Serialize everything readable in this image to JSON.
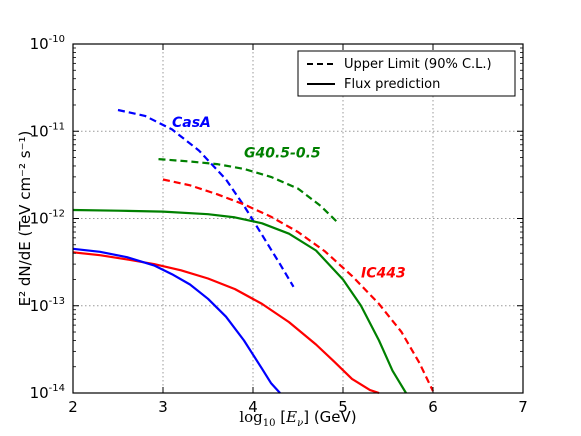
{
  "chart_data": {
    "type": "line",
    "xlabel_prefix": "log",
    "xlabel_sub": "10",
    "xlabel_var": "E",
    "xlabel_var_sub": "ν",
    "xlabel_unit": "(GeV)",
    "ylabel": "E² dN/dE (TeV cm⁻² s⁻¹)",
    "xlim": [
      2,
      7
    ],
    "ylim": [
      1e-14,
      1e-10
    ],
    "yscale": "log",
    "grid": true,
    "x_ticks": [
      "2",
      "3",
      "4",
      "5",
      "6",
      "7"
    ],
    "y_ticks": [
      {
        "base": "10",
        "exp": "-14"
      },
      {
        "base": "10",
        "exp": "-13"
      },
      {
        "base": "10",
        "exp": "-12"
      },
      {
        "base": "10",
        "exp": "-11"
      },
      {
        "base": "10",
        "exp": "-10"
      }
    ],
    "legend": {
      "position": "top-right",
      "entries": [
        {
          "label": "Upper Limit (90% C.L.)",
          "style": "dashed"
        },
        {
          "label": "Flux prediction",
          "style": "solid"
        }
      ]
    },
    "series": [
      {
        "source": "CasA",
        "kind": "upper_limit",
        "style": "dashed",
        "color": "#0000ff",
        "x": [
          2.5,
          2.8,
          3.1,
          3.4,
          3.7,
          3.9,
          4.1,
          4.3,
          4.45
        ],
        "y": [
          1.75e-11,
          1.5e-11,
          1.05e-11,
          6e-12,
          2.8e-12,
          1.4e-12,
          6.5e-13,
          3e-13,
          1.65e-13
        ]
      },
      {
        "source": "G40.5-0.5",
        "kind": "upper_limit",
        "style": "dashed",
        "color": "#008000",
        "x": [
          2.95,
          3.3,
          3.6,
          3.9,
          4.2,
          4.5,
          4.75,
          4.95
        ],
        "y": [
          4.8e-12,
          4.5e-12,
          4.2e-12,
          3.7e-12,
          3e-12,
          2.2e-12,
          1.4e-12,
          8.8e-13
        ]
      },
      {
        "source": "IC443",
        "kind": "upper_limit",
        "style": "dashed",
        "color": "#ff0000",
        "x": [
          3.0,
          3.3,
          3.6,
          3.9,
          4.2,
          4.5,
          4.8,
          5.1,
          5.4,
          5.65,
          5.85,
          6.0
        ],
        "y": [
          2.8e-12,
          2.4e-12,
          1.9e-12,
          1.45e-12,
          1.05e-12,
          7e-13,
          4.2e-13,
          2.2e-13,
          1.05e-13,
          5e-14,
          2.2e-14,
          1.05e-14
        ]
      },
      {
        "source": "G40.5-0.5",
        "kind": "prediction",
        "style": "solid",
        "color": "#008000",
        "x": [
          2.0,
          2.5,
          3.0,
          3.5,
          3.8,
          4.1,
          4.4,
          4.7,
          5.0,
          5.2,
          5.4,
          5.55,
          5.7
        ],
        "y": [
          1.25e-12,
          1.23e-12,
          1.2e-12,
          1.12e-12,
          1.03e-12,
          8.8e-13,
          6.7e-13,
          4.3e-13,
          2e-13,
          1e-13,
          4e-14,
          1.8e-14,
          1e-14
        ]
      },
      {
        "source": "IC443",
        "kind": "prediction",
        "style": "solid",
        "color": "#ff0000",
        "x": [
          2.0,
          2.3,
          2.6,
          2.9,
          3.2,
          3.5,
          3.8,
          4.1,
          4.4,
          4.7,
          4.9,
          5.1,
          5.3,
          5.4
        ],
        "y": [
          4.1e-13,
          3.8e-13,
          3.4e-13,
          3e-13,
          2.55e-13,
          2.05e-13,
          1.55e-13,
          1.05e-13,
          6.5e-14,
          3.6e-14,
          2.3e-14,
          1.45e-14,
          1.08e-14,
          1e-14
        ]
      },
      {
        "source": "CasA",
        "kind": "prediction",
        "style": "solid",
        "color": "#0000ff",
        "x": [
          2.0,
          2.3,
          2.6,
          2.9,
          3.1,
          3.3,
          3.5,
          3.7,
          3.9,
          4.1,
          4.2,
          4.3
        ],
        "y": [
          4.5e-13,
          4.15e-13,
          3.6e-13,
          2.9e-13,
          2.3e-13,
          1.75e-13,
          1.2e-13,
          7.5e-14,
          4e-14,
          1.9e-14,
          1.3e-14,
          1e-14
        ]
      }
    ],
    "annotations": [
      {
        "text": "CasA",
        "x": 3.1,
        "y": 1.12e-11,
        "color": "#0000ff"
      },
      {
        "text": "G40.5-0.5",
        "x": 3.9,
        "y": 5e-12,
        "color": "#008000"
      },
      {
        "text": "IC443",
        "x": 5.2,
        "y": 2.1e-13,
        "color": "#ff0000"
      }
    ]
  }
}
